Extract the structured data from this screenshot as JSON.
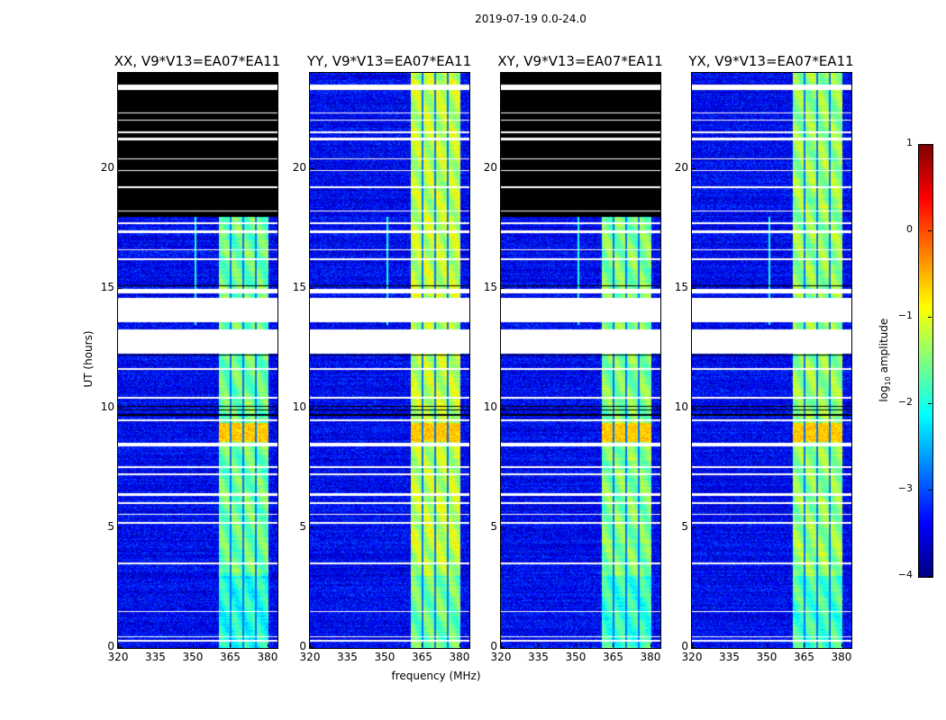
{
  "suptitle": "2019-07-19 0.0-24.0",
  "chart_data": {
    "type": "heatmap",
    "xlabel": "frequency (MHz)",
    "ylabel": "UT (hours)",
    "xlim": [
      320,
      384
    ],
    "ylim": [
      0,
      24
    ],
    "xticks": [
      320,
      335,
      350,
      365,
      380
    ],
    "xtick_labels": [
      "320",
      "335",
      "350",
      "365",
      "380"
    ],
    "yticks": [
      0,
      5,
      10,
      15,
      20
    ],
    "ytick_labels": [
      "0",
      "5",
      "10",
      "15",
      "20"
    ],
    "colorbar": {
      "label": "amplitude",
      "label_prefix": "log",
      "label_sub": "10",
      "range": [
        -4,
        1
      ],
      "ticks": [
        1,
        0,
        -1,
        -2,
        -3,
        -4
      ],
      "tick_labels": [
        "1",
        "0",
        "−1",
        "−2",
        "−3",
        "−4"
      ],
      "colormap": "jet"
    },
    "panels": [
      {
        "title": "XX, V9*V13=EA07*EA11",
        "band_level": -1.6,
        "masked_from_hour": 18.0
      },
      {
        "title": "YY, V9*V13=EA07*EA11",
        "band_level": -1.2,
        "masked_from_hour": null
      },
      {
        "title": "XY, V9*V13=EA07*EA11",
        "band_level": -1.5,
        "masked_from_hour": 18.0
      },
      {
        "title": "YX, V9*V13=EA07*EA11",
        "band_level": -1.4,
        "masked_from_hour": null
      }
    ],
    "background_level": -3.4,
    "band_mhz": [
      360.5,
      380.3
    ],
    "band_gaps_mhz": [
      365.2,
      370.2,
      375.3
    ],
    "hot_hours": [
      8.6,
      9.4
    ],
    "rfi_channel_mhz": 351.0,
    "flagged_hours": [
      [
        0.25,
        0.32
      ],
      [
        0.45,
        0.5
      ],
      [
        1.5,
        1.53
      ],
      [
        2.5,
        2.53
      ],
      [
        3.5,
        3.58
      ],
      [
        5.2,
        5.25
      ],
      [
        5.55,
        5.6
      ],
      [
        6.0,
        6.1
      ],
      [
        6.35,
        6.45
      ],
      [
        7.2,
        7.3
      ],
      [
        7.5,
        7.6
      ],
      [
        8.4,
        8.55
      ],
      [
        9.45,
        9.55
      ],
      [
        10.4,
        10.48
      ],
      [
        11.6,
        11.68
      ],
      [
        12.3,
        13.3
      ],
      [
        13.6,
        14.6
      ],
      [
        14.8,
        15.0
      ],
      [
        16.2,
        16.28
      ],
      [
        16.6,
        16.65
      ],
      [
        17.3,
        17.42
      ],
      [
        17.7,
        17.75
      ],
      [
        18.2,
        18.25
      ],
      [
        19.2,
        19.25
      ],
      [
        19.9,
        19.95
      ],
      [
        20.4,
        20.45
      ],
      [
        21.2,
        21.28
      ],
      [
        21.5,
        21.55
      ],
      [
        22.0,
        22.05
      ],
      [
        22.3,
        22.35
      ],
      [
        23.3,
        23.5
      ]
    ],
    "dark_hours": [
      [
        9.7,
        9.75
      ],
      [
        9.9,
        9.95
      ],
      [
        10.05,
        10.1
      ],
      [
        15.1,
        15.15
      ],
      [
        12.2,
        12.25
      ]
    ]
  }
}
